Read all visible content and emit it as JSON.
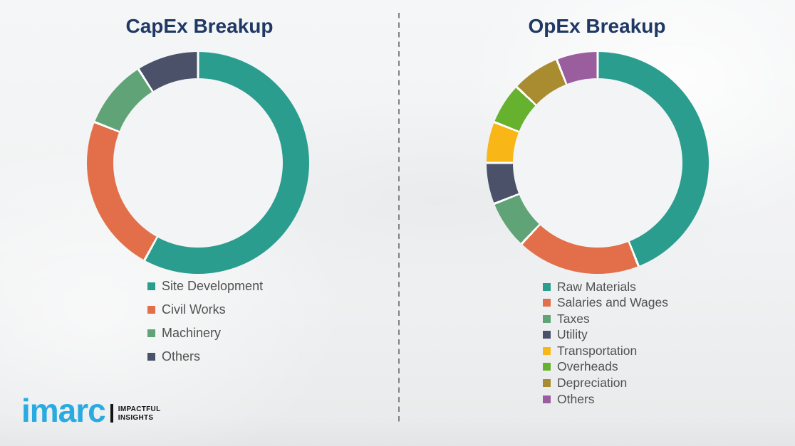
{
  "page": {
    "background_color": "#f1f2f3"
  },
  "divider_color": "#7f8386",
  "title_color": "#1f3864",
  "legend_text_color": "#515151",
  "chart_data": [
    {
      "type": "pie",
      "subtype": "donut",
      "title": "CapEx Breakup",
      "labels": [
        "Site Development",
        "Civil Works",
        "Machinery",
        "Others"
      ],
      "values": [
        58,
        23,
        10,
        9
      ],
      "colors": [
        "#2a9d8f",
        "#e26f4a",
        "#5fa376",
        "#4a5169"
      ],
      "legend_position": "bottom-left",
      "start_angle_deg": 0,
      "direction": "clockwise"
    },
    {
      "type": "pie",
      "subtype": "donut",
      "title": "OpEx Breakup",
      "labels": [
        "Raw Materials",
        "Salaries and Wages",
        "Taxes",
        "Utility",
        "Transportation",
        "Overheads",
        "Depreciation",
        "Others"
      ],
      "values": [
        44,
        18,
        7,
        6,
        6,
        6,
        7,
        6
      ],
      "colors": [
        "#2a9d8f",
        "#e26f4a",
        "#5fa376",
        "#4a5169",
        "#f8b617",
        "#66b22f",
        "#a98c30",
        "#9a5d9e"
      ],
      "legend_position": "bottom-left",
      "start_angle_deg": 0,
      "direction": "clockwise"
    }
  ],
  "logo": {
    "brand": "imarc",
    "tagline_line1": "IMPACTFUL",
    "tagline_line2": "INSIGHTS",
    "brand_color": "#29abe2",
    "tagline_color": "#141414"
  }
}
